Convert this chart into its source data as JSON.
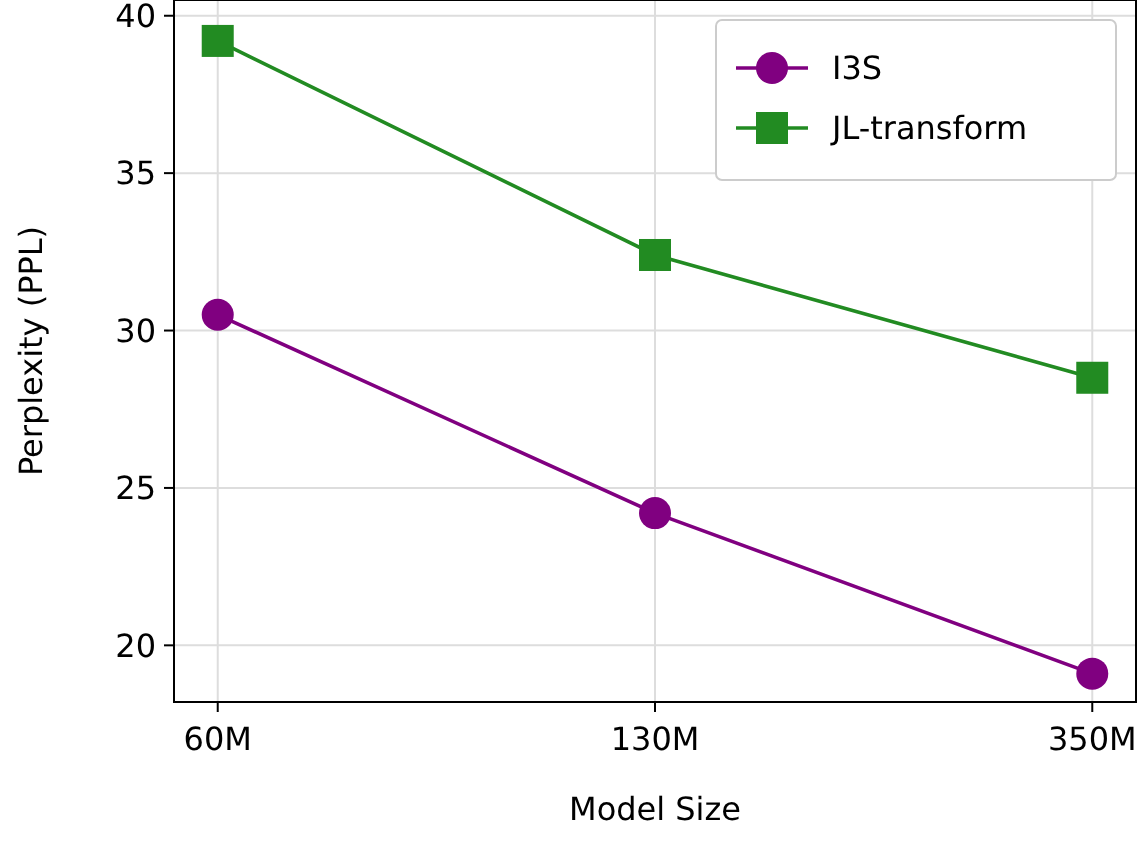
{
  "chart_data": {
    "type": "line",
    "xlabel": "Model Size",
    "ylabel": "Perplexity (PPL)",
    "categories": [
      "60M",
      "130M",
      "350M"
    ],
    "series": [
      {
        "name": "I3S",
        "color": "#800080",
        "marker": "circle",
        "values": [
          30.5,
          24.2,
          19.1
        ]
      },
      {
        "name": "JL-transform",
        "color": "#228b22",
        "marker": "square",
        "values": [
          39.2,
          32.4,
          28.5
        ]
      }
    ],
    "ylim": [
      18.2,
      40.5
    ],
    "yticks": [
      20,
      25,
      30,
      35,
      40
    ],
    "grid": true,
    "legend": "top right"
  }
}
